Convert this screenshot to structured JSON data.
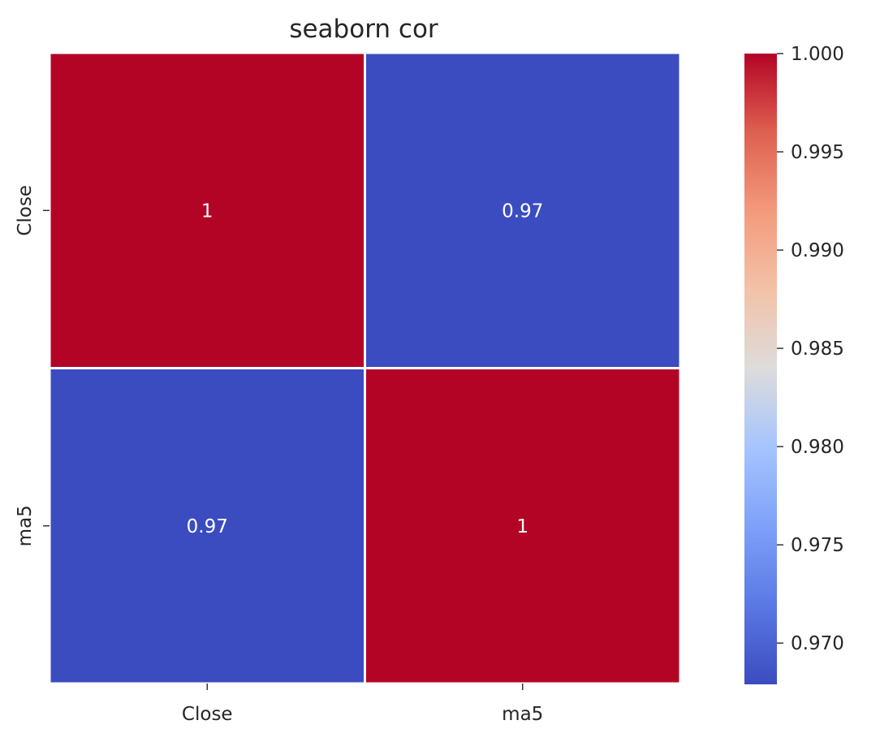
{
  "chart_data": {
    "type": "heatmap",
    "title": "seaborn cor",
    "xlabel": "",
    "ylabel": "",
    "x_categories": [
      "Close",
      "ma5"
    ],
    "y_categories": [
      "Close",
      "ma5"
    ],
    "values": [
      [
        1.0,
        0.9679
      ],
      [
        0.9679,
        1.0
      ]
    ],
    "annotations": [
      [
        "1",
        "0.97"
      ],
      [
        "0.97",
        "1"
      ]
    ],
    "colormap": "coolwarm",
    "colorbar": {
      "range": [
        0.9679,
        1.0
      ],
      "ticks": [
        0.97,
        0.975,
        0.98,
        0.985,
        0.99,
        0.995,
        1.0
      ],
      "tick_labels": [
        "0.970",
        "0.975",
        "0.980",
        "0.985",
        "0.990",
        "0.995",
        "1.000"
      ]
    },
    "low_color": "#3b4cc0",
    "high_color": "#b40426",
    "cell_text_color": "#ffffff",
    "gridline_color": "#ffffff"
  }
}
